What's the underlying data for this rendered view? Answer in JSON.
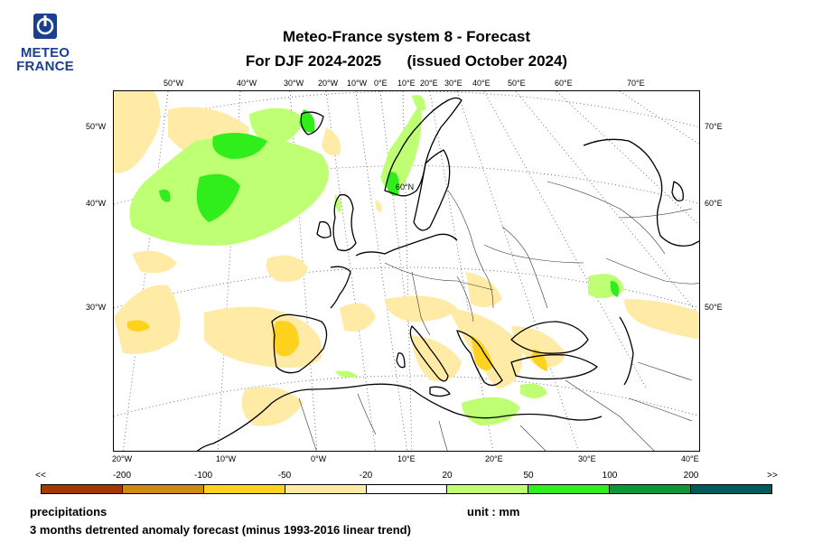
{
  "logo": {
    "line1": "METEO",
    "line2": "FRANCE",
    "color": "#1b3f8f"
  },
  "header": {
    "title_line1": "Meteo-France system 8  -  Forecast",
    "title_line2": "For DJF 2024-2025      (issued October 2024)"
  },
  "map": {
    "top_lon_labels": [
      "50°W",
      "40°W",
      "30°W",
      "20°W",
      "10°W",
      "0°E",
      "10°E",
      "20°E",
      "30°E",
      "40°E",
      "50°E",
      "60°E",
      "70°E"
    ],
    "bottom_lon_labels": [
      "20°W",
      "10°W",
      "0°W",
      "10°E",
      "20°E",
      "30°E",
      "40°E"
    ],
    "left_lat_labels": [
      "50°W",
      "40°W",
      "30°W"
    ],
    "right_lat_labels": [
      "70°E",
      "60°E",
      "50°E"
    ],
    "inner_label": "60°N"
  },
  "legend": {
    "open_left": "<<",
    "open_right": ">>",
    "ticks": [
      "-200",
      "-100",
      "-50",
      "-20",
      "20",
      "50",
      "100",
      "200"
    ],
    "colors": [
      "#a23a00",
      "#cc8c14",
      "#ffd21e",
      "#ffeba5",
      "#ffffff",
      "#bfff73",
      "#30ee1c",
      "#0f9638",
      "#005a5a"
    ]
  },
  "footer": {
    "variable": "precipitations",
    "unit": "unit : mm",
    "description": "3 months detrented anomaly forecast (minus 1993-2016 linear trend)"
  }
}
